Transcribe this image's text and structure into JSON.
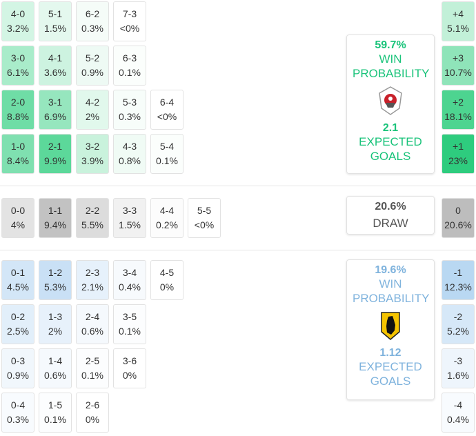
{
  "home": {
    "rows": [
      [
        {
          "score": "4-0",
          "prob": "3.2%",
          "color": "#d3f5e4"
        },
        {
          "score": "5-1",
          "prob": "1.5%",
          "color": "#e4f8ee"
        },
        {
          "score": "6-2",
          "prob": "0.3%",
          "color": "#f5fcf8"
        },
        {
          "score": "7-3",
          "prob": "<0%",
          "color": "#ffffff"
        }
      ],
      [
        {
          "score": "3-0",
          "prob": "6.1%",
          "color": "#a9ecca"
        },
        {
          "score": "4-1",
          "prob": "3.6%",
          "color": "#cdf3e0"
        },
        {
          "score": "5-2",
          "prob": "0.9%",
          "color": "#eefaf4"
        },
        {
          "score": "6-3",
          "prob": "0.1%",
          "color": "#fbfefc"
        }
      ],
      [
        {
          "score": "2-0",
          "prob": "8.8%",
          "color": "#6fdda6"
        },
        {
          "score": "3-1",
          "prob": "6.9%",
          "color": "#96e6be"
        },
        {
          "score": "4-2",
          "prob": "2%",
          "color": "#e1f8ec"
        },
        {
          "score": "5-3",
          "prob": "0.3%",
          "color": "#f7fdfa"
        },
        {
          "score": "6-4",
          "prob": "<0%",
          "color": "#ffffff"
        }
      ],
      [
        {
          "score": "1-0",
          "prob": "8.4%",
          "color": "#7fe0b0"
        },
        {
          "score": "2-1",
          "prob": "9.9%",
          "color": "#5cd89a"
        },
        {
          "score": "3-2",
          "prob": "3.9%",
          "color": "#c9f2dc"
        },
        {
          "score": "4-3",
          "prob": "0.8%",
          "color": "#f0fbf5"
        },
        {
          "score": "5-4",
          "prob": "0.1%",
          "color": "#fbfefc"
        }
      ]
    ],
    "goal_diff": [
      {
        "score": "+4",
        "prob": "5.1%",
        "color": "#c2f0d8"
      },
      {
        "score": "+3",
        "prob": "10.7%",
        "color": "#8fe4b9"
      },
      {
        "score": "+2",
        "prob": "18.1%",
        "color": "#4dd490"
      },
      {
        "score": "+1",
        "prob": "23%",
        "color": "#2ecc7e"
      }
    ],
    "card": {
      "win_pct": "59.7%",
      "win_label": "WIN PROBABILITY",
      "xg": "2.1",
      "xg_label": "EXPECTED GOALS",
      "color": "#19c37a"
    }
  },
  "draw": {
    "row": [
      {
        "score": "0-0",
        "prob": "4%",
        "color": "#e3e3e3"
      },
      {
        "score": "1-1",
        "prob": "9.4%",
        "color": "#c2c2c2"
      },
      {
        "score": "2-2",
        "prob": "5.5%",
        "color": "#dcdcdc"
      },
      {
        "score": "3-3",
        "prob": "1.5%",
        "color": "#f1f1f1"
      },
      {
        "score": "4-4",
        "prob": "0.2%",
        "color": "#fcfcfc"
      },
      {
        "score": "5-5",
        "prob": "<0%",
        "color": "#ffffff"
      }
    ],
    "goal_diff": {
      "score": "0",
      "prob": "20.6%",
      "color": "#bdbdbd"
    },
    "card": {
      "pct": "20.6%",
      "label": "DRAW"
    }
  },
  "away": {
    "rows": [
      [
        {
          "score": "0-1",
          "prob": "4.5%",
          "color": "#d3e6f7"
        },
        {
          "score": "1-2",
          "prob": "5.3%",
          "color": "#c9e0f5"
        },
        {
          "score": "2-3",
          "prob": "2.1%",
          "color": "#e6f1fb"
        },
        {
          "score": "3-4",
          "prob": "0.4%",
          "color": "#f7fafd"
        },
        {
          "score": "4-5",
          "prob": "0%",
          "color": "#ffffff"
        }
      ],
      [
        {
          "score": "0-2",
          "prob": "2.5%",
          "color": "#e2effa"
        },
        {
          "score": "1-3",
          "prob": "2%",
          "color": "#e7f1fb"
        },
        {
          "score": "2-4",
          "prob": "0.6%",
          "color": "#f5f9fd"
        },
        {
          "score": "3-5",
          "prob": "0.1%",
          "color": "#fcfdfe"
        }
      ],
      [
        {
          "score": "0-3",
          "prob": "0.9%",
          "color": "#f1f7fc"
        },
        {
          "score": "1-4",
          "prob": "0.6%",
          "color": "#f5f9fd"
        },
        {
          "score": "2-5",
          "prob": "0.1%",
          "color": "#fcfdfe"
        },
        {
          "score": "3-6",
          "prob": "0%",
          "color": "#ffffff"
        }
      ],
      [
        {
          "score": "0-4",
          "prob": "0.3%",
          "color": "#f8fbfe"
        },
        {
          "score": "1-5",
          "prob": "0.1%",
          "color": "#fcfdfe"
        },
        {
          "score": "2-6",
          "prob": "0%",
          "color": "#ffffff"
        }
      ]
    ],
    "goal_diff": [
      {
        "score": "-1",
        "prob": "12.3%",
        "color": "#b9d8f2"
      },
      {
        "score": "-2",
        "prob": "5.2%",
        "color": "#d6e8f8"
      },
      {
        "score": "-3",
        "prob": "1.6%",
        "color": "#eef5fc"
      },
      {
        "score": "-4",
        "prob": "0.4%",
        "color": "#f8fbfe"
      }
    ],
    "card": {
      "win_pct": "19.6%",
      "win_label": "WIN PROBABILITY",
      "xg": "1.12",
      "xg_label": "EXPECTED GOALS",
      "color": "#7fb3dd"
    }
  }
}
